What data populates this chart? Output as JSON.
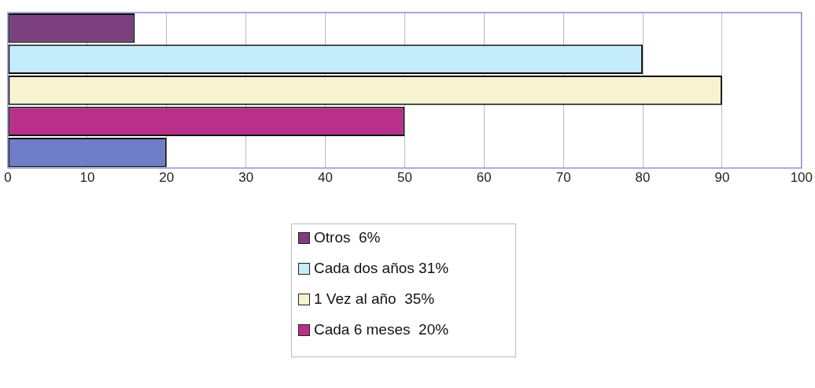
{
  "chart_data": {
    "type": "bar",
    "orientation": "horizontal",
    "categories": [
      null
    ],
    "series": [
      {
        "name": "Otros  6%",
        "color": "#7b3f7f",
        "values": [
          16
        ]
      },
      {
        "name": "Cada dos años 31%",
        "color": "#c4ecfa",
        "values": [
          80
        ]
      },
      {
        "name": "1 Vez al año  35%",
        "color": "#f7f2d0",
        "values": [
          90
        ]
      },
      {
        "name": "Cada 6 meses  20%",
        "color": "#b8308a",
        "values": [
          50
        ]
      },
      {
        "color": "#6f7cc8",
        "values": [
          20
        ]
      }
    ],
    "xlim": [
      0,
      100
    ],
    "xticks": [
      0,
      10,
      20,
      30,
      40,
      50,
      60,
      70,
      80,
      90,
      100
    ],
    "grid": "x",
    "legend": "bottom"
  }
}
